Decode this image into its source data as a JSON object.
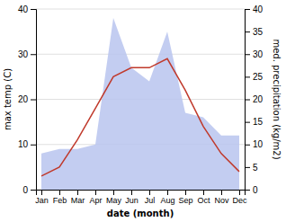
{
  "chart_data": {
    "type": "line",
    "categories": [
      "Jan",
      "Feb",
      "Mar",
      "Apr",
      "May",
      "Jun",
      "Jul",
      "Aug",
      "Sep",
      "Oct",
      "Nov",
      "Dec"
    ],
    "xlabel": "date (month)",
    "ylabel": "max temp (C)",
    "y2label": "med. precipitation (kg/m2)",
    "series": [
      {
        "type": "area",
        "axis": "y2",
        "color": "#b8c4ee",
        "values": [
          8,
          9,
          9,
          10,
          38,
          27,
          24,
          35,
          17,
          16,
          12,
          12
        ]
      },
      {
        "type": "line",
        "color": "#c0392b",
        "values": [
          3,
          5,
          11,
          18,
          25,
          27,
          27,
          29,
          22,
          14,
          8,
          4
        ]
      }
    ],
    "ylim": [
      0,
      40
    ],
    "yticks": [
      0,
      10,
      20,
      30,
      40
    ],
    "y2lim": [
      0,
      40
    ],
    "y2ticks": [
      0,
      5,
      10,
      15,
      20,
      25,
      30,
      35,
      40
    ],
    "grid": true
  }
}
